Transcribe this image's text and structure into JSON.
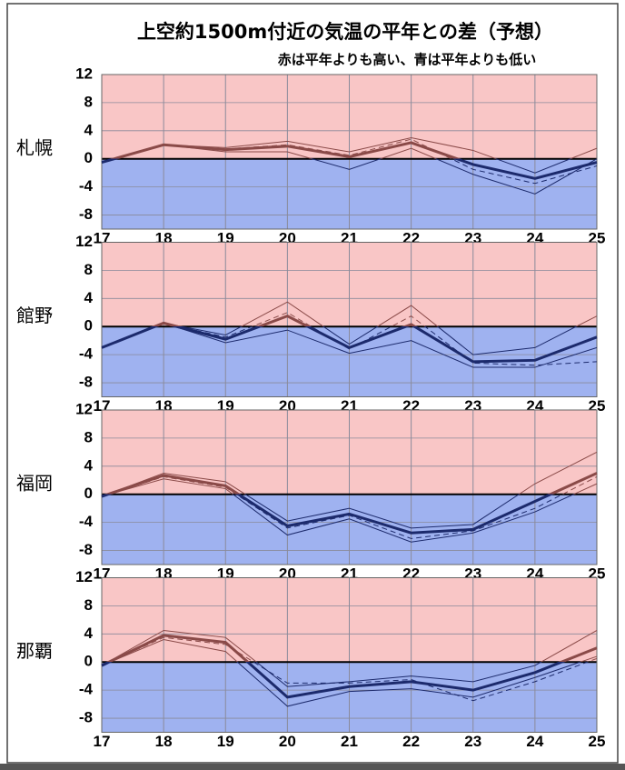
{
  "title": "上空約1500m付近の気温の平年との差（予想）",
  "subtitle": "赤は平年よりも高い、青は平年よりも低い",
  "chart_data": [
    {
      "type": "line",
      "title": "札幌",
      "x": [
        17,
        18,
        19,
        20,
        21,
        22,
        23,
        24,
        25
      ],
      "xlim": [
        17,
        25
      ],
      "xticks": [
        17,
        18,
        19,
        20,
        21,
        22,
        23,
        24,
        25
      ],
      "ylim": [
        -10,
        12
      ],
      "yticks": [
        -8,
        -4,
        0,
        4,
        8,
        12
      ],
      "grid": true,
      "background": {
        "above": "#f9c6c6",
        "below": "#9fb2f0"
      },
      "colors": {
        "above": "#8a4a48",
        "below": "#1c2a6c"
      },
      "series": [
        {
          "values": [
            -0.5,
            2,
            1.3,
            1.8,
            0.3,
            2.3,
            -0.8,
            -2.8,
            -0.5
          ],
          "width": 3
        },
        {
          "values": [
            -0.5,
            2,
            1.6,
            2.5,
            1,
            3,
            1.2,
            -2,
            1.5
          ],
          "width": 1
        },
        {
          "values": [
            -0.5,
            2,
            1,
            1,
            -1.5,
            1.5,
            -2.2,
            -5,
            0
          ],
          "width": 1
        },
        {
          "values": [
            -0.5,
            2,
            1.4,
            2,
            0.5,
            2.8,
            -1.5,
            -3.5,
            -1
          ],
          "width": 1,
          "dash": true
        }
      ]
    },
    {
      "type": "line",
      "title": "館野",
      "x": [
        17,
        18,
        19,
        20,
        21,
        22,
        23,
        24,
        25
      ],
      "xlim": [
        17,
        25
      ],
      "xticks": [
        17,
        18,
        19,
        20,
        21,
        22,
        23,
        24,
        25
      ],
      "ylim": [
        -10,
        12
      ],
      "yticks": [
        -8,
        -4,
        0,
        4,
        8,
        12
      ],
      "grid": true,
      "background": {
        "above": "#f9c6c6",
        "below": "#9fb2f0"
      },
      "colors": {
        "above": "#8a4a48",
        "below": "#1c2a6c"
      },
      "series": [
        {
          "values": [
            -3,
            0.5,
            -1.8,
            1.5,
            -3,
            0.3,
            -5,
            -4.8,
            -1.5
          ],
          "width": 3
        },
        {
          "values": [
            -3,
            0.5,
            -1.2,
            3.5,
            -2.5,
            3,
            -4,
            -3,
            1.5
          ],
          "width": 1
        },
        {
          "values": [
            -3,
            0.5,
            -2.3,
            -0.5,
            -3.8,
            -2,
            -5.8,
            -5.8,
            -3
          ],
          "width": 1
        },
        {
          "values": [
            -3,
            0.5,
            -1.5,
            2,
            -3.2,
            1.5,
            -5.2,
            -5.5,
            -5
          ],
          "width": 1,
          "dash": true
        }
      ]
    },
    {
      "type": "line",
      "title": "福岡",
      "x": [
        17,
        18,
        19,
        20,
        21,
        22,
        23,
        24,
        25
      ],
      "xlim": [
        17,
        25
      ],
      "xticks": [
        17,
        18,
        19,
        20,
        21,
        22,
        23,
        24,
        25
      ],
      "ylim": [
        -10,
        12
      ],
      "yticks": [
        -8,
        -4,
        0,
        4,
        8,
        12
      ],
      "grid": true,
      "background": {
        "above": "#f9c6c6",
        "below": "#9fb2f0"
      },
      "colors": {
        "above": "#8a4a48",
        "below": "#1c2a6c"
      },
      "series": [
        {
          "values": [
            -0.3,
            2.7,
            1.2,
            -4.5,
            -2.8,
            -5.5,
            -5,
            -1,
            3
          ],
          "width": 3
        },
        {
          "values": [
            -0.3,
            3,
            1.8,
            -3.8,
            -2,
            -4.8,
            -4.3,
            1.5,
            6
          ],
          "width": 1
        },
        {
          "values": [
            -0.3,
            2.2,
            0.8,
            -5.8,
            -3.5,
            -6.8,
            -5.5,
            -2.5,
            1.5
          ],
          "width": 1
        },
        {
          "values": [
            -0.3,
            2.5,
            1,
            -4.8,
            -3,
            -6.3,
            -5.2,
            -2,
            2.5
          ],
          "width": 1,
          "dash": true
        }
      ]
    },
    {
      "type": "line",
      "title": "那覇",
      "x": [
        17,
        18,
        19,
        20,
        21,
        22,
        23,
        24,
        25
      ],
      "xlim": [
        17,
        25
      ],
      "xticks": [
        17,
        18,
        19,
        20,
        21,
        22,
        23,
        24,
        25
      ],
      "ylim": [
        -10,
        12
      ],
      "yticks": [
        -8,
        -4,
        0,
        4,
        8,
        12
      ],
      "grid": true,
      "background": {
        "above": "#f9c6c6",
        "below": "#9fb2f0"
      },
      "colors": {
        "above": "#8a4a48",
        "below": "#1c2a6c"
      },
      "series": [
        {
          "values": [
            -0.5,
            3.8,
            2.8,
            -5,
            -3.5,
            -2.8,
            -4,
            -1.5,
            2
          ],
          "width": 3
        },
        {
          "values": [
            -0.5,
            4.5,
            3.5,
            -3.5,
            -2.8,
            -2,
            -2.8,
            -0.5,
            4.5
          ],
          "width": 1
        },
        {
          "values": [
            -0.5,
            3.2,
            1.5,
            -6.3,
            -4.2,
            -3.8,
            -5,
            -2.2,
            0.8
          ],
          "width": 1
        },
        {
          "values": [
            -0.5,
            3.5,
            2.5,
            -3,
            -3,
            -2.5,
            -5.5,
            -2.8,
            0.5
          ],
          "width": 1,
          "dash": true
        }
      ]
    }
  ]
}
